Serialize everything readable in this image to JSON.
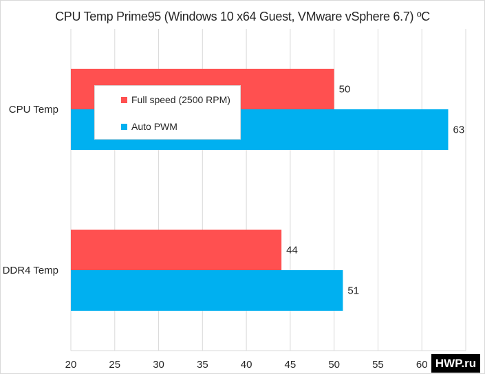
{
  "chart_data": {
    "type": "bar",
    "orientation": "horizontal",
    "title": "CPU Temp Prime95 (Windows 10 x64 Guest, VMware vSphere 6.7) ºC",
    "categories": [
      "CPU Temp",
      "DDR4 Temp"
    ],
    "series": [
      {
        "name": "Full speed (2500 RPM)",
        "values": [
          50,
          44
        ],
        "color": "#ff5050"
      },
      {
        "name": "Auto PWM",
        "values": [
          63,
          51
        ],
        "color": "#00b0f0"
      }
    ],
    "xlim": [
      20,
      65
    ],
    "xticks": [
      "20",
      "25",
      "30",
      "35",
      "40",
      "45",
      "50",
      "55",
      "60",
      "65"
    ],
    "grid": true,
    "legend_position": "top-left inside plot"
  },
  "watermark": "HWP.ru"
}
